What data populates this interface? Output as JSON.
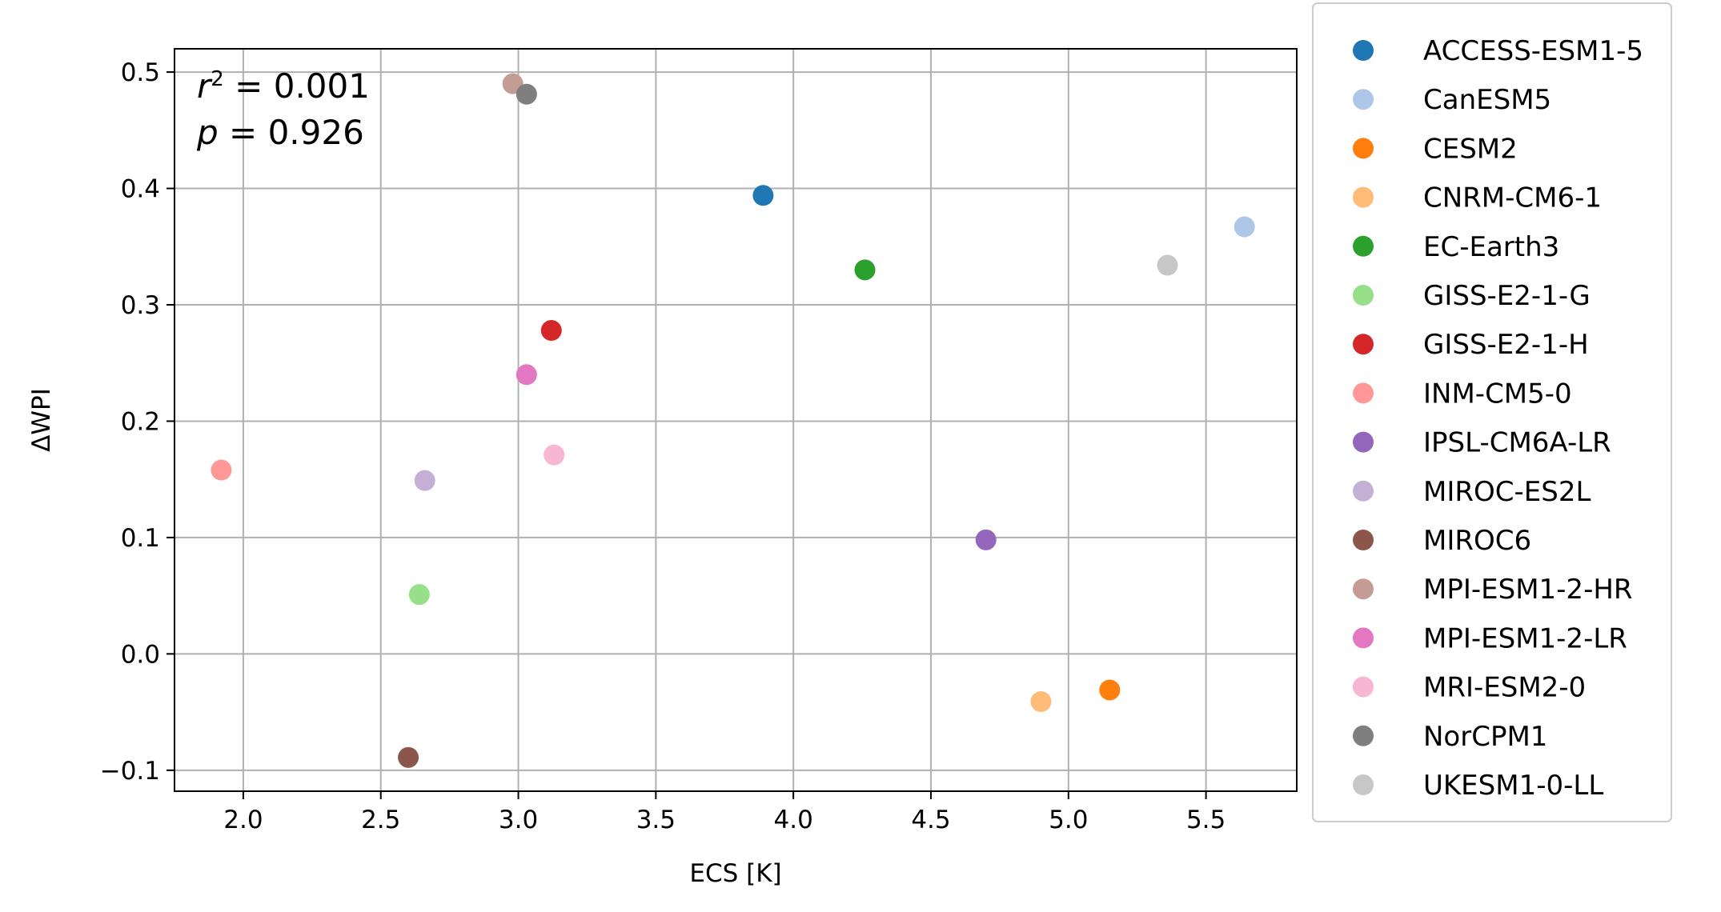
{
  "chart_data": {
    "type": "scatter",
    "xlabel": "ECS [K]",
    "ylabel": "ΔWPI",
    "xlim": [
      1.75,
      5.83
    ],
    "ylim": [
      -0.118,
      0.52
    ],
    "xticks": [
      2.0,
      2.5,
      3.0,
      3.5,
      4.0,
      4.5,
      5.0,
      5.5
    ],
    "xtick_labels": [
      "2.0",
      "2.5",
      "3.0",
      "3.5",
      "4.0",
      "4.5",
      "5.0",
      "5.5"
    ],
    "yticks": [
      -0.1,
      0.0,
      0.1,
      0.2,
      0.3,
      0.4,
      0.5
    ],
    "ytick_labels": [
      "−0.1",
      "0.0",
      "0.1",
      "0.2",
      "0.3",
      "0.4",
      "0.5"
    ],
    "grid": true,
    "legend_placement": "outside-right",
    "annotation": {
      "r_symbol": "r",
      "r_exponent": "2",
      "r_value": " = 0.001",
      "p_symbol": "p",
      "p_value": " = 0.926"
    },
    "series": [
      {
        "name": "ACCESS-ESM1-5",
        "color": "#1f77b4",
        "x": 3.89,
        "y": 0.394
      },
      {
        "name": "CanESM5",
        "color": "#aec7e8",
        "x": 5.64,
        "y": 0.367
      },
      {
        "name": "CESM2",
        "color": "#ff7f0e",
        "x": 5.15,
        "y": -0.031
      },
      {
        "name": "CNRM-CM6-1",
        "color": "#ffbb78",
        "x": 4.9,
        "y": -0.041
      },
      {
        "name": "EC-Earth3",
        "color": "#2ca02c",
        "x": 4.26,
        "y": 0.33
      },
      {
        "name": "GISS-E2-1-G",
        "color": "#98df8a",
        "x": 2.64,
        "y": 0.051
      },
      {
        "name": "GISS-E2-1-H",
        "color": "#d62728",
        "x": 3.12,
        "y": 0.278
      },
      {
        "name": "INM-CM5-0",
        "color": "#ff9896",
        "x": 1.92,
        "y": 0.158
      },
      {
        "name": "IPSL-CM6A-LR",
        "color": "#9467bd",
        "x": 4.7,
        "y": 0.098
      },
      {
        "name": "MIROC-ES2L",
        "color": "#c5b0d5",
        "x": 2.66,
        "y": 0.149
      },
      {
        "name": "MIROC6",
        "color": "#8c564b",
        "x": 2.6,
        "y": -0.089
      },
      {
        "name": "MPI-ESM1-2-HR",
        "color": "#c49c94",
        "x": 2.98,
        "y": 0.49
      },
      {
        "name": "MPI-ESM1-2-LR",
        "color": "#e377c2",
        "x": 3.03,
        "y": 0.24
      },
      {
        "name": "MRI-ESM2-0",
        "color": "#f7b6d2",
        "x": 3.13,
        "y": 0.171
      },
      {
        "name": "NorCPM1",
        "color": "#7f7f7f",
        "x": 3.03,
        "y": 0.481
      },
      {
        "name": "UKESM1-0-LL",
        "color": "#c7c7c7",
        "x": 5.36,
        "y": 0.334
      }
    ]
  }
}
